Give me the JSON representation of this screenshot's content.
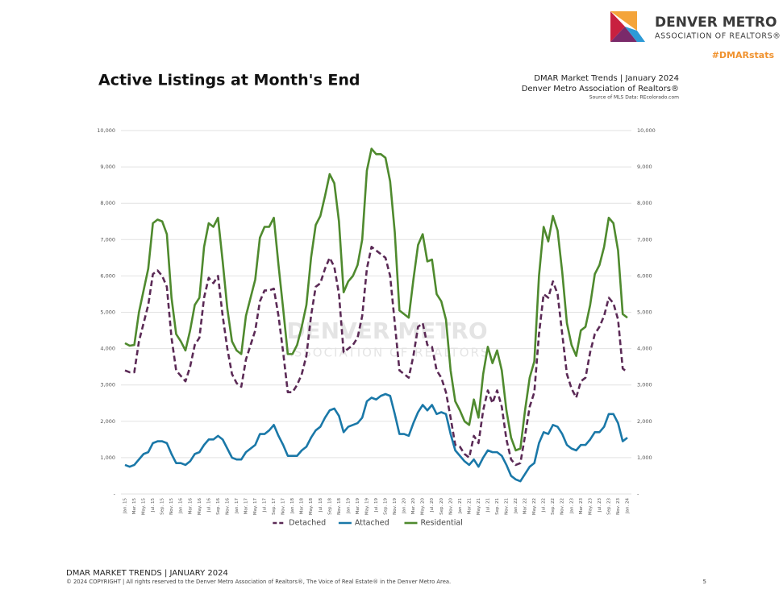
{
  "header": {
    "logo_title": "DENVER METRO",
    "logo_subtitle": "ASSOCIATION OF REALTORS®",
    "hashtag": "#DMARstats",
    "title": "Active Listings at Month's End",
    "report": "DMAR Market Trends | January 2024",
    "org": "Denver Metro Association of Realtors®",
    "source": "Source of MLS Data: REcolorado.com"
  },
  "watermark": {
    "line1": "DENVER METRO",
    "line2": "ASSOCIATION OF REALTORS"
  },
  "chart_data": {
    "type": "line",
    "categories": [
      "Jan. 15",
      null,
      "Mar. 15",
      null,
      "May. 15",
      null,
      "Jul. 15",
      null,
      "Sep. 15",
      null,
      "Nov. 15",
      null,
      "Jan. 16",
      null,
      "Mar. 16",
      null,
      "May. 16",
      null,
      "Jul. 16",
      null,
      "Sep. 16",
      null,
      "Nov. 16",
      null,
      "Jan. 17",
      null,
      "Mar. 17",
      null,
      "May. 17",
      null,
      "Jul. 17",
      null,
      "Sep. 17",
      null,
      "Nov. 17",
      null,
      "Jan. 18",
      null,
      "Mar. 18",
      null,
      "May. 18",
      null,
      "Jul. 18",
      null,
      "Sep. 18",
      null,
      "Nov. 18",
      null,
      "Jan. 19",
      null,
      "Mar. 19",
      null,
      "May. 19",
      null,
      "Jul. 19",
      null,
      "Sep. 19",
      null,
      "Nov. 19",
      null,
      "Jan. 20",
      null,
      "Mar. 20",
      null,
      "May. 20",
      null,
      "Jul. 20",
      null,
      "Sep. 20",
      null,
      "Nov. 20",
      null,
      "Jan. 21",
      null,
      "Mar. 21",
      null,
      "May. 21",
      null,
      "Jul. 21",
      null,
      "Sep. 21",
      null,
      "Nov. 21",
      null,
      "Jan. 22",
      null,
      "Mar. 22",
      null,
      "May. 22",
      null,
      "Jul. 22",
      null,
      "Sep. 22",
      null,
      "Nov. 22",
      null,
      "Jan. 23",
      null,
      "Mar. 23",
      null,
      "May. 23",
      null,
      "Jul. 23",
      null,
      "Sep. 23",
      null,
      "Nov. 23",
      null,
      "Jan. 24"
    ],
    "series": [
      {
        "name": "Detached",
        "color": "#5b2a56",
        "dashed": true,
        "values": [
          3400,
          3350,
          3350,
          4200,
          4700,
          5200,
          6050,
          6150,
          6000,
          5700,
          4300,
          3400,
          3250,
          3100,
          3500,
          4100,
          4300,
          5400,
          5950,
          5800,
          6000,
          4900,
          4000,
          3300,
          3050,
          2950,
          3700,
          4100,
          4500,
          5300,
          5600,
          5600,
          5650,
          4900,
          3900,
          2800,
          2800,
          3000,
          3300,
          3800,
          4900,
          5700,
          5800,
          6200,
          6500,
          6250,
          5500,
          3900,
          4000,
          4100,
          4300,
          4900,
          6200,
          6800,
          6700,
          6600,
          6500,
          6000,
          4700,
          3400,
          3300,
          3200,
          3800,
          4600,
          4700,
          4100,
          4050,
          3400,
          3200,
          2800,
          2100,
          1350,
          1300,
          1100,
          1000,
          1600,
          1400,
          2300,
          2850,
          2500,
          2850,
          2400,
          1500,
          950,
          800,
          850,
          1600,
          2400,
          2800,
          4400,
          5500,
          5400,
          5850,
          5500,
          4400,
          3300,
          2900,
          2650,
          3100,
          3200,
          3900,
          4400,
          4600,
          4900,
          5400,
          5250,
          4800,
          3450,
          3350
        ]
      },
      {
        "name": "Attached",
        "color": "#1a78a8",
        "dashed": false,
        "values": [
          800,
          750,
          800,
          950,
          1100,
          1150,
          1400,
          1450,
          1450,
          1400,
          1100,
          850,
          850,
          800,
          900,
          1100,
          1150,
          1350,
          1500,
          1500,
          1600,
          1500,
          1250,
          1000,
          950,
          950,
          1150,
          1250,
          1350,
          1650,
          1650,
          1750,
          1900,
          1600,
          1350,
          1050,
          1050,
          1050,
          1200,
          1300,
          1550,
          1750,
          1850,
          2100,
          2300,
          2350,
          2150,
          1700,
          1850,
          1900,
          1950,
          2100,
          2550,
          2650,
          2600,
          2700,
          2750,
          2700,
          2200,
          1650,
          1650,
          1600,
          1950,
          2250,
          2450,
          2300,
          2450,
          2200,
          2250,
          2200,
          1650,
          1200,
          1050,
          900,
          800,
          950,
          750,
          1000,
          1200,
          1150,
          1150,
          1050,
          800,
          500,
          400,
          350,
          550,
          750,
          850,
          1400,
          1700,
          1650,
          1900,
          1850,
          1650,
          1350,
          1250,
          1200,
          1350,
          1350,
          1500,
          1700,
          1700,
          1850,
          2200,
          2200,
          1950,
          1450,
          1550
        ]
      },
      {
        "name": "Residential",
        "color": "#4f8a2e",
        "dashed": false,
        "values": [
          4150,
          4080,
          4100,
          5000,
          5600,
          6200,
          7450,
          7550,
          7500,
          7150,
          5400,
          4400,
          4200,
          3950,
          4500,
          5200,
          5400,
          6800,
          7450,
          7350,
          7600,
          6400,
          5100,
          4200,
          3950,
          3850,
          4900,
          5400,
          5900,
          7050,
          7350,
          7350,
          7600,
          6300,
          5100,
          3850,
          3850,
          4100,
          4600,
          5200,
          6500,
          7400,
          7650,
          8200,
          8800,
          8550,
          7500,
          5550,
          5850,
          6000,
          6300,
          7000,
          8900,
          9500,
          9350,
          9350,
          9250,
          8600,
          7200,
          5050,
          4950,
          4850,
          5900,
          6850,
          7150,
          6400,
          6450,
          5500,
          5300,
          4800,
          3400,
          2550,
          2300,
          2000,
          1900,
          2600,
          2100,
          3300,
          4050,
          3600,
          3950,
          3400,
          2300,
          1550,
          1200,
          1250,
          2300,
          3200,
          3650,
          6000,
          7350,
          6950,
          7650,
          7250,
          6100,
          4700,
          4100,
          3800,
          4500,
          4600,
          5200,
          6050,
          6300,
          6800,
          7600,
          7450,
          6700,
          4950,
          4850
        ]
      }
    ],
    "ylim": [
      0,
      10000
    ],
    "yticks": [
      {
        "value": 0,
        "label": "-"
      },
      {
        "value": 1000,
        "label": "1,000"
      },
      {
        "value": 2000,
        "label": "2,000"
      },
      {
        "value": 3000,
        "label": "3,000"
      },
      {
        "value": 4000,
        "label": "4,000"
      },
      {
        "value": 5000,
        "label": "5,000"
      },
      {
        "value": 6000,
        "label": "6,000"
      },
      {
        "value": 7000,
        "label": "7,000"
      },
      {
        "value": 8000,
        "label": "8,000"
      },
      {
        "value": 9000,
        "label": "9,000"
      },
      {
        "value": 10000,
        "label": "10,000"
      }
    ],
    "grid": true,
    "legend": "bottom"
  },
  "footer": {
    "title": "DMAR MARKET TRENDS | JANUARY 2024",
    "copyright": "© 2024 COPYRIGHT | All rights reserved to the Denver Metro Association of Realtors®, The Voice of Real Estate® in the Denver Metro Area.",
    "page": "5"
  }
}
